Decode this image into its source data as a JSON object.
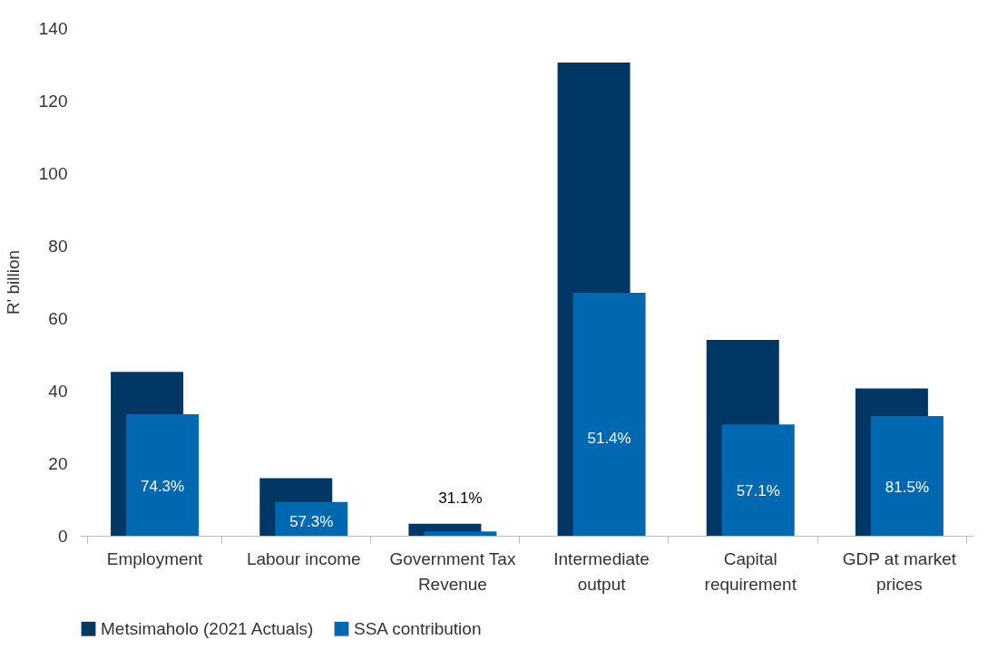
{
  "chart_data": {
    "type": "bar",
    "ylabel": "R' billion",
    "categories": [
      "Employment",
      "Labour income",
      "Government Tax Revenue",
      "Intermediate output",
      "Capital requirement",
      "GDP at market prices"
    ],
    "series": [
      {
        "name": "Metsimaholo (2021 Actuals)",
        "color": "#003764",
        "values": [
          45.2,
          15.9,
          3.3,
          130.5,
          54,
          40.6
        ]
      },
      {
        "name": "SSA contribution",
        "color": "#0067b1",
        "values": [
          33.5,
          9.3,
          1.2,
          67,
          30.7,
          33
        ]
      }
    ],
    "annotations": [
      "74.3%",
      "57.3%",
      "31.1%",
      "51.4%",
      "57.1%",
      "81.5%"
    ],
    "ylim": [
      0,
      140
    ],
    "yticks": [
      0,
      20,
      40,
      60,
      80,
      100,
      120,
      140
    ],
    "grid": false,
    "legend": "bottom"
  }
}
